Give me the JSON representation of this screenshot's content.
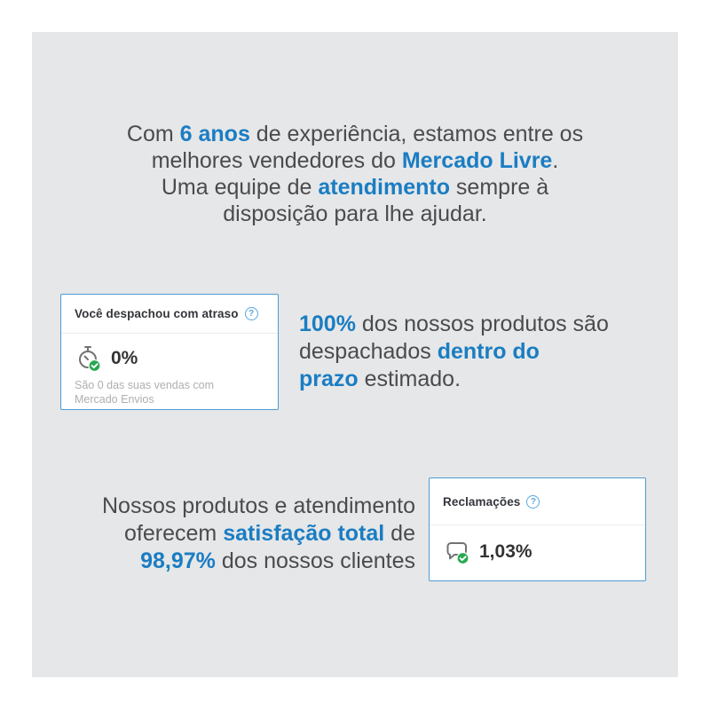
{
  "colors": {
    "accent_blue": "#1a7dc3",
    "text_gray": "#4b4b4d",
    "panel_bg": "#e6e7e8",
    "card_border": "#4e9cd3",
    "card_title": "#33353b",
    "muted_gray": "#aeafb1",
    "green_badge": "#2aa952",
    "divider": "#ececec",
    "help_blue": "#5ba6dd"
  },
  "intro": {
    "lines": [
      [
        {
          "t": "Com "
        },
        {
          "t": "6 anos",
          "hl": true
        },
        {
          "t": " de experiência, estamos entre os"
        }
      ],
      [
        {
          "t": "melhores vendedores do "
        },
        {
          "t": "Mercado Livre",
          "hl": true
        },
        {
          "t": "."
        }
      ],
      [
        {
          "t": "Uma equipe de "
        },
        {
          "t": "atendimento",
          "hl": true
        },
        {
          "t": " sempre à"
        }
      ],
      [
        {
          "t": "disposição para lhe ajudar."
        }
      ]
    ]
  },
  "dispatch_text": {
    "lines": [
      [
        {
          "t": "100%",
          "hl": true
        },
        {
          "t": " dos nossos produtos são"
        }
      ],
      [
        {
          "t": "despachados "
        },
        {
          "t": "dentro do",
          "hl": true
        }
      ],
      [
        {
          "t": "prazo",
          "hl": true
        },
        {
          "t": " estimado."
        }
      ]
    ]
  },
  "satisfaction_text": {
    "lines": [
      [
        {
          "t": "Nossos produtos e atendimento"
        }
      ],
      [
        {
          "t": "oferecem "
        },
        {
          "t": "satisfação total",
          "hl": true
        },
        {
          "t": " de"
        }
      ],
      [
        {
          "t": "98,97%",
          "hl": true
        },
        {
          "t": " dos nossos clientes"
        }
      ]
    ]
  },
  "cards": {
    "late_dispatch": {
      "title": "Você despachou com atraso",
      "help_glyph": "?",
      "icon": "stopwatch-check-icon",
      "value": "0%",
      "subtitle": "São 0 das suas vendas com Mercado Envios"
    },
    "complaints": {
      "title": "Reclamações",
      "help_glyph": "?",
      "icon": "chat-bubble-check-icon",
      "value": "1,03%"
    }
  }
}
